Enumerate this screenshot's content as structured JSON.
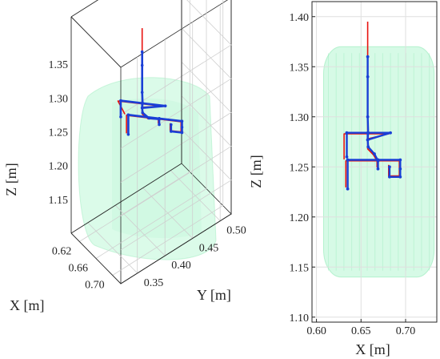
{
  "chart_data": [
    {
      "type": "line",
      "view": "3d",
      "title": "",
      "xlabel": "X [m]",
      "ylabel": "Y [m]",
      "zlabel": "Z [m]",
      "x_ticks": [
        "0.62",
        "0.66",
        "0.70"
      ],
      "y_ticks": [
        "0.35",
        "0.40",
        "0.45",
        "0.50"
      ],
      "z_ticks": [
        "1.15",
        "1.20",
        "1.25",
        "1.30",
        "1.35"
      ],
      "xlim": [
        0.6,
        0.72
      ],
      "ylim": [
        0.32,
        0.52
      ],
      "zlim": [
        1.1,
        1.42
      ],
      "grid": true,
      "legend": "none",
      "colors": {
        "reference": "#e8120f",
        "measured": "#1a3fd6",
        "workspace": "#a5f5c8"
      }
    },
    {
      "type": "line",
      "view": "x-z projection",
      "title": "",
      "xlabel": "X [m]",
      "ylabel": "Z [m]",
      "x_ticks": [
        "0.60",
        "0.65",
        "0.70"
      ],
      "y_ticks": [
        "1.10",
        "1.15",
        "1.20",
        "1.25",
        "1.30",
        "1.35",
        "1.40"
      ],
      "xlim": [
        0.595,
        0.735
      ],
      "ylim": [
        1.095,
        1.415
      ],
      "grid": true,
      "legend": "none",
      "workspace_region": {
        "x": [
          0.608,
          0.732
        ],
        "z": [
          1.14,
          1.37
        ]
      },
      "series": [
        {
          "role": "reference",
          "color": "#e8120f",
          "x": [
            0.6575,
            0.6575,
            0.6575,
            0.631,
            0.631,
            0.631,
            0.6575,
            0.6575,
            0.681,
            0.6575,
            0.6575,
            0.6575,
            0.6575,
            0.664,
            0.668,
            0.668,
            0.668,
            0.633,
            0.633,
            0.633,
            0.668,
            0.668,
            0.693,
            0.693,
            0.693,
            0.681,
            0.681
          ],
          "y": [
            1.395,
            1.35,
            1.283,
            1.283,
            1.258,
            1.283,
            1.283,
            1.278,
            1.283,
            1.283,
            1.276,
            1.27,
            1.268,
            1.262,
            1.256,
            1.25,
            1.256,
            1.256,
            1.23,
            1.256,
            1.256,
            1.256,
            1.256,
            1.248,
            1.241,
            1.241,
            1.252
          ]
        },
        {
          "role": "measured",
          "color": "#1a3fd6",
          "x": [
            0.6575,
            0.6575,
            0.6575,
            0.658,
            0.634,
            0.634,
            0.634,
            0.658,
            0.6575,
            0.683,
            0.6575,
            0.6575,
            0.658,
            0.665,
            0.669,
            0.669,
            0.669,
            0.635,
            0.635,
            0.635,
            0.669,
            0.669,
            0.694,
            0.694,
            0.694,
            0.682,
            0.682
          ],
          "y": [
            1.36,
            1.34,
            1.3,
            1.284,
            1.284,
            1.26,
            1.284,
            1.284,
            1.277,
            1.284,
            1.284,
            1.277,
            1.27,
            1.263,
            1.256,
            1.248,
            1.257,
            1.257,
            1.228,
            1.257,
            1.257,
            1.257,
            1.257,
            1.248,
            1.24,
            1.24,
            1.25
          ]
        }
      ]
    }
  ]
}
